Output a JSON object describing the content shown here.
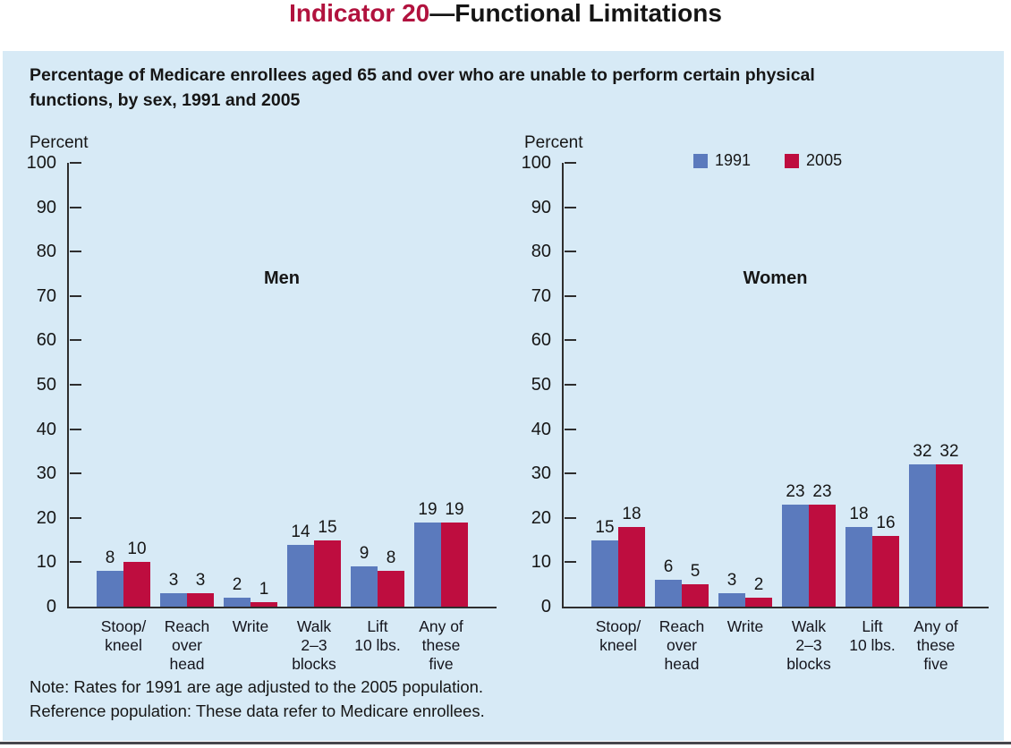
{
  "header": {
    "title_accent": "Indicator 20",
    "title_rest": "—Functional Limitations",
    "subtitle_lines": [
      "Percentage of Medicare enrollees aged 65 and over who are unable to perform certain physical",
      "functions, by sex, 1991 and 2005"
    ]
  },
  "legend": {
    "position": "top-of-women-chart",
    "items": [
      {
        "label": "1991",
        "color": "#5b7abd"
      },
      {
        "label": "2005",
        "color": "#be0d3f"
      }
    ]
  },
  "chart_data": [
    {
      "type": "bar",
      "title": "Men",
      "ylabel": "Percent",
      "ylim": [
        0,
        100
      ],
      "ytick_step": 10,
      "grid": false,
      "bar_value_labels": true,
      "categories": [
        "Stoop/kneel",
        "Reach over head",
        "Write",
        "Walk 2–3 blocks",
        "Lift 10 lbs.",
        "Any of these five"
      ],
      "category_lines": [
        [
          "Stoop/",
          "kneel"
        ],
        [
          "Reach",
          "over",
          "head"
        ],
        [
          "Write"
        ],
        [
          "Walk",
          "2–3",
          "blocks"
        ],
        [
          "Lift",
          "10 lbs."
        ],
        [
          "Any of",
          "these",
          "five"
        ]
      ],
      "series": [
        {
          "name": "1991",
          "color": "#5b7abd",
          "values": [
            8,
            3,
            2,
            14,
            9,
            19
          ]
        },
        {
          "name": "2005",
          "color": "#be0d3f",
          "values": [
            10,
            3,
            1,
            15,
            8,
            19
          ]
        }
      ]
    },
    {
      "type": "bar",
      "title": "Women",
      "ylabel": "Percent",
      "ylim": [
        0,
        100
      ],
      "ytick_step": 10,
      "grid": false,
      "bar_value_labels": true,
      "categories": [
        "Stoop/kneel",
        "Reach over head",
        "Write",
        "Walk 2–3 blocks",
        "Lift 10 lbs.",
        "Any of these five"
      ],
      "category_lines": [
        [
          "Stoop/",
          "kneel"
        ],
        [
          "Reach",
          "over",
          "head"
        ],
        [
          "Write"
        ],
        [
          "Walk",
          "2–3",
          "blocks"
        ],
        [
          "Lift",
          "10 lbs."
        ],
        [
          "Any of",
          "these",
          "five"
        ]
      ],
      "series": [
        {
          "name": "1991",
          "color": "#5b7abd",
          "values": [
            15,
            6,
            3,
            23,
            18,
            32
          ]
        },
        {
          "name": "2005",
          "color": "#be0d3f",
          "values": [
            18,
            5,
            2,
            23,
            16,
            32
          ]
        }
      ]
    }
  ],
  "notes": [
    "Note: Rates for 1991 are age adjusted to the 2005 population.",
    "Reference population: These data refer to Medicare enrollees."
  ],
  "colors": {
    "panel_background": "#d7eaf6",
    "bar_1991": "#5b7abd",
    "bar_2005": "#be0d3f",
    "title_accent": "#b1123e",
    "text": "#161616",
    "axis": "#2e2e2e",
    "bottom_rule": "#46464c"
  }
}
